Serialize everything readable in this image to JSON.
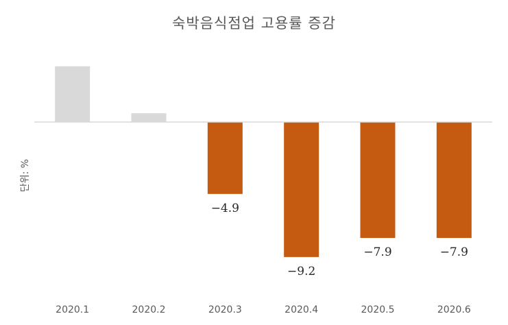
{
  "title": "숙박음식점업 고용률 증감",
  "unit_label": "단위: %",
  "colors": {
    "positive": "#d9d9d9",
    "negative": "#c55a11",
    "axis": "#d9d9d9"
  },
  "chart_data": {
    "type": "bar",
    "title": "숙박음식점업 고용률 증감",
    "ylabel": "단위: %",
    "categories": [
      "2020.1",
      "2020.2",
      "2020.3",
      "2020.4",
      "2020.5",
      "2020.6"
    ],
    "values": [
      3.8,
      0.6,
      -4.9,
      -9.2,
      -7.9,
      -7.9
    ],
    "data_labels": [
      null,
      null,
      "-4.9",
      "-9.2",
      "-7.9",
      "-7.9"
    ],
    "ylim": [
      -9.2,
      3.8
    ],
    "grid": false,
    "legend": "none"
  }
}
